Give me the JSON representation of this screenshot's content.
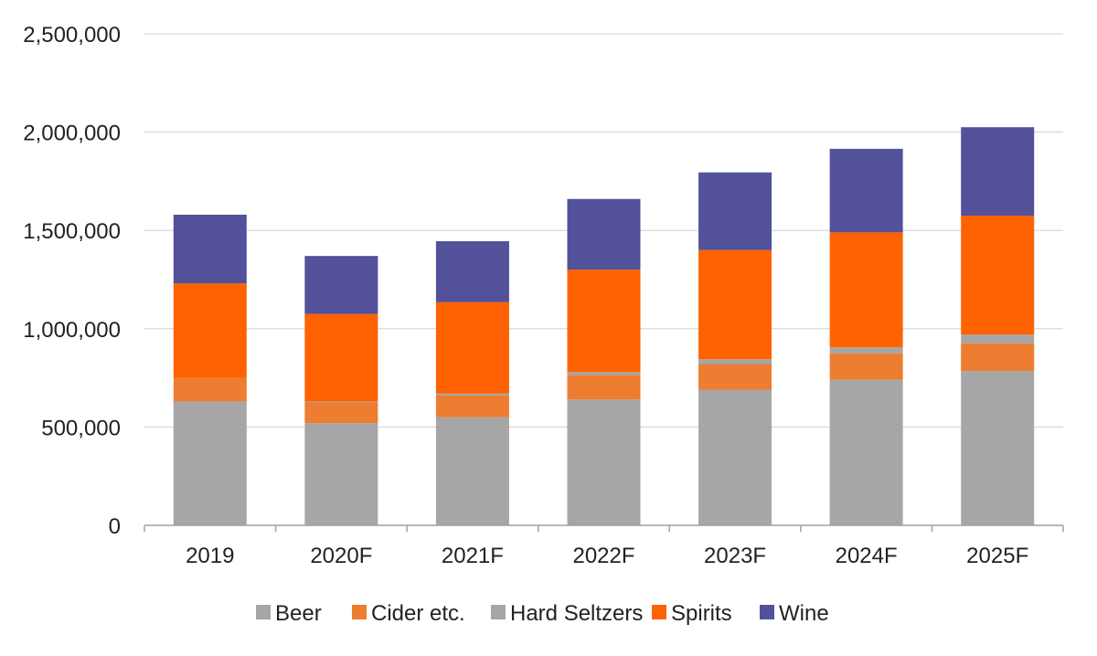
{
  "chart_data": {
    "type": "bar",
    "stacked": true,
    "title": "",
    "xlabel": "",
    "ylabel": "",
    "categories": [
      "2019",
      "2020F",
      "2021F",
      "2022F",
      "2023F",
      "2024F",
      "2025F"
    ],
    "ylim": [
      0,
      2500000
    ],
    "yticks": [
      0,
      500000,
      1000000,
      1500000,
      2000000,
      2500000
    ],
    "ytick_labels": [
      "0",
      "500,000",
      "1,000,000",
      "1,500,000",
      "2,000,000",
      "2,500,000"
    ],
    "grid": true,
    "legend_position": "bottom",
    "series": [
      {
        "name": "Beer",
        "color": "#A6A6A6",
        "values": [
          630000,
          520000,
          550000,
          640000,
          690000,
          740000,
          785000
        ]
      },
      {
        "name": "Cider etc.",
        "color": "#ED7D31",
        "values": [
          120000,
          105000,
          110000,
          125000,
          130000,
          135000,
          140000
        ]
      },
      {
        "name": "Hard Seltzers",
        "color": "#A6A6A6",
        "values": [
          0,
          5000,
          10000,
          15000,
          25000,
          30000,
          45000
        ]
      },
      {
        "name": "Spirits",
        "color": "#FF6200",
        "values": [
          480000,
          445000,
          465000,
          520000,
          555000,
          585000,
          605000
        ]
      },
      {
        "name": "Wine",
        "color": "#525199",
        "values": [
          350000,
          295000,
          310000,
          360000,
          395000,
          425000,
          450000
        ]
      }
    ]
  }
}
